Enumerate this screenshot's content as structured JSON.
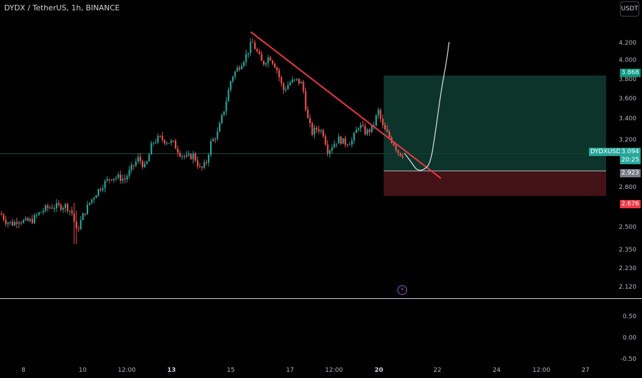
{
  "header": {
    "title": "DYDX / TetherUS, 1h, BINANCE",
    "currency_button": "USDT"
  },
  "chart_data": {
    "type": "candlestick",
    "symbol": "DYDXUSDT",
    "y_ticks": [
      "4.200",
      "4.000",
      "3.800",
      "3.600",
      "3.400",
      "3.200",
      "2.800",
      "2.500",
      "2.350",
      "2.230",
      "2.120"
    ],
    "x_ticks": [
      {
        "label": "8",
        "bold": false
      },
      {
        "label": "10",
        "bold": false
      },
      {
        "label": "12:00",
        "bold": false
      },
      {
        "label": "13",
        "bold": true
      },
      {
        "label": "15",
        "bold": false
      },
      {
        "label": "17",
        "bold": false
      },
      {
        "label": "12:00",
        "bold": false
      },
      {
        "label": "20",
        "bold": true
      },
      {
        "label": "22",
        "bold": false
      },
      {
        "label": "24",
        "bold": false
      },
      {
        "label": "12:00",
        "bold": false
      },
      {
        "label": "27",
        "bold": false
      }
    ],
    "price_labels": {
      "target": "3.868",
      "symbol": "DYDXUSDT",
      "last_price": "3.094",
      "countdown": "20:25",
      "entry": "2.923",
      "stop": "2.676"
    },
    "anchors": [
      [
        0,
        2.5
      ],
      [
        8,
        2.42
      ],
      [
        18,
        2.4
      ],
      [
        25,
        2.44
      ],
      [
        35,
        2.42
      ],
      [
        45,
        2.43
      ],
      [
        55,
        2.5
      ],
      [
        65,
        2.55
      ],
      [
        75,
        2.57
      ],
      [
        85,
        2.57
      ],
      [
        95,
        2.58
      ],
      [
        104,
        2.5
      ],
      [
        110,
        2.32
      ],
      [
        120,
        2.49
      ],
      [
        130,
        2.62
      ],
      [
        140,
        2.72
      ],
      [
        150,
        2.8
      ],
      [
        160,
        2.86
      ],
      [
        170,
        2.86
      ],
      [
        180,
        2.84
      ],
      [
        190,
        2.95
      ],
      [
        200,
        3.05
      ],
      [
        210,
        2.95
      ],
      [
        220,
        3.2
      ],
      [
        230,
        3.25
      ],
      [
        240,
        3.22
      ],
      [
        250,
        3.2
      ],
      [
        260,
        3.1
      ],
      [
        270,
        3.05
      ],
      [
        280,
        3.08
      ],
      [
        290,
        2.93
      ],
      [
        298,
        3.0
      ],
      [
        305,
        3.2
      ],
      [
        315,
        3.3
      ],
      [
        325,
        3.55
      ],
      [
        335,
        3.85
      ],
      [
        345,
        3.95
      ],
      [
        355,
        4.05
      ],
      [
        365,
        4.2
      ],
      [
        372,
        4.1
      ],
      [
        380,
        3.98
      ],
      [
        390,
        4.06
      ],
      [
        400,
        3.95
      ],
      [
        410,
        3.72
      ],
      [
        420,
        3.8
      ],
      [
        430,
        3.82
      ],
      [
        438,
        3.78
      ],
      [
        445,
        3.45
      ],
      [
        452,
        3.3
      ],
      [
        460,
        3.35
      ],
      [
        468,
        3.3
      ],
      [
        475,
        3.12
      ],
      [
        482,
        3.18
      ],
      [
        490,
        3.24
      ],
      [
        500,
        3.2
      ],
      [
        510,
        3.22
      ],
      [
        520,
        3.38
      ],
      [
        530,
        3.3
      ],
      [
        540,
        3.35
      ],
      [
        548,
        3.52
      ],
      [
        555,
        3.35
      ],
      [
        562,
        3.28
      ],
      [
        570,
        3.2
      ],
      [
        578,
        3.1
      ],
      [
        585,
        3.08
      ]
    ],
    "trendline": [
      [
        364,
        4.3
      ],
      [
        640,
        2.85
      ]
    ],
    "position": {
      "x_start": 557,
      "x_end": 880,
      "target": 3.868,
      "entry": 2.923,
      "stop": 2.676
    },
    "projection_path": [
      [
        587,
        3.1
      ],
      [
        598,
        3.0
      ],
      [
        605,
        2.93
      ],
      [
        615,
        2.93
      ],
      [
        625,
        3.0
      ],
      [
        632,
        3.3
      ],
      [
        640,
        3.7
      ],
      [
        648,
        4.0
      ],
      [
        652,
        4.2
      ]
    ],
    "oscillator_ticks": [
      "0.50",
      "0.00",
      "-0.50"
    ],
    "colors": {
      "up": "#26a69a",
      "down": "#ef5350",
      "trend": "#f23645",
      "tp_zone": "#0f3d33",
      "sl_zone": "#4a1418"
    }
  }
}
